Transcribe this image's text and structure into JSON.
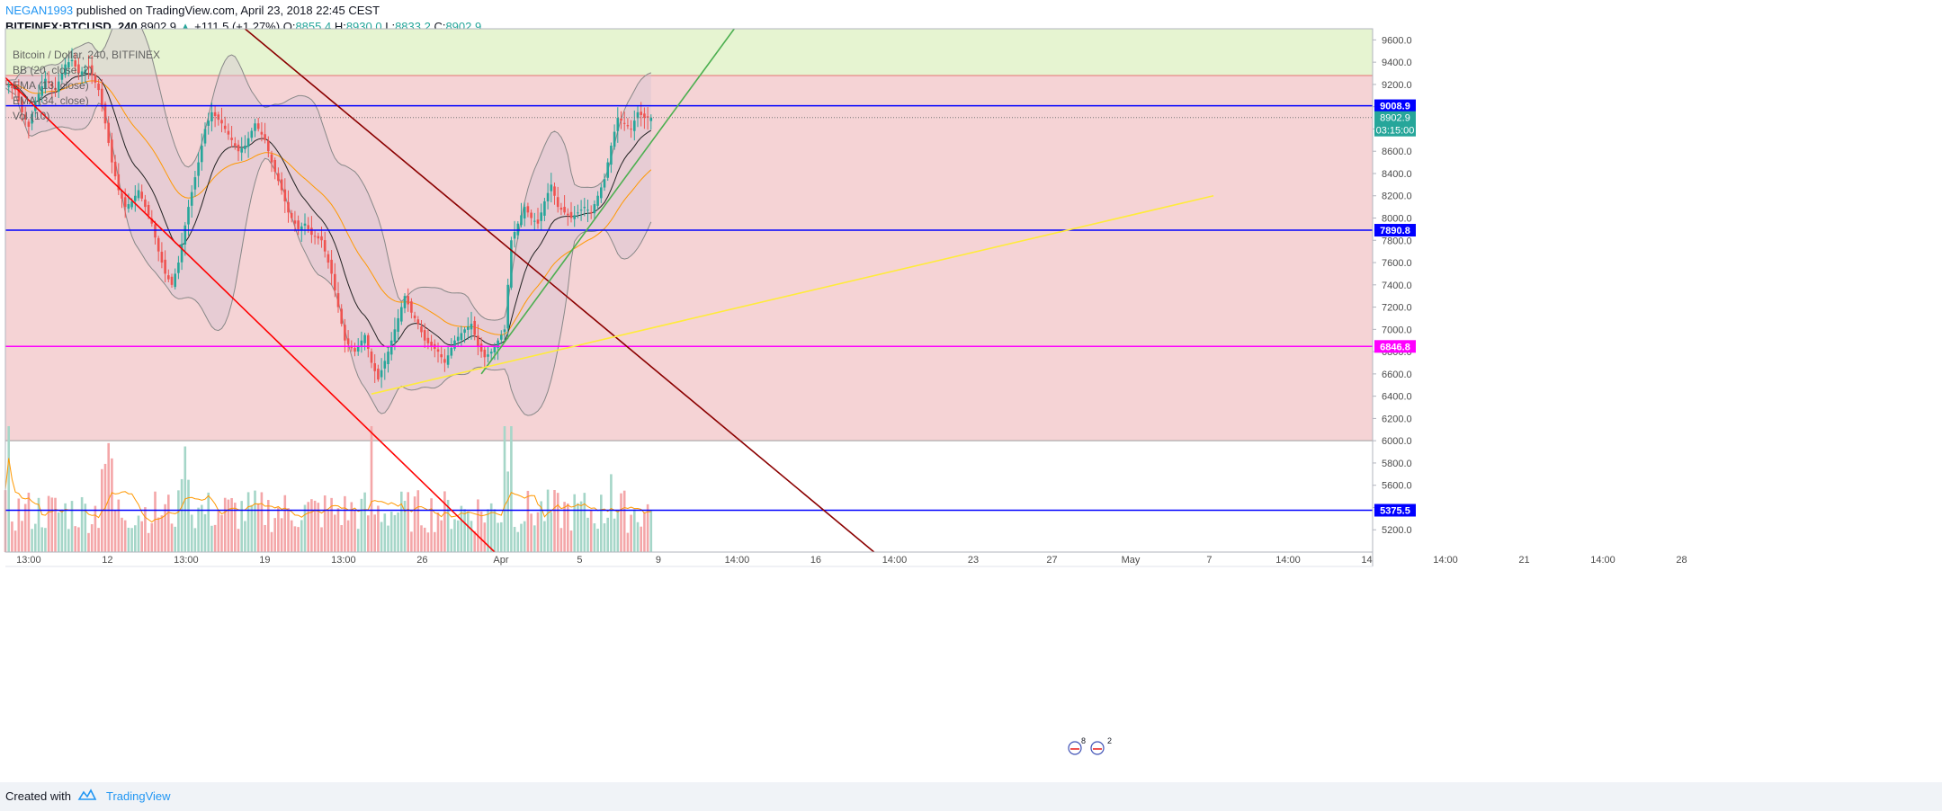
{
  "header": {
    "author": "NEGAN1993",
    "published_text": "published on TradingView.com, April 23, 2018 22:45 CEST",
    "symbol": "BITFINEX:BTCUSD, 240",
    "last": "8902.9",
    "change": "+111.5 (+1.27%)",
    "o_label": "O:",
    "o_value": "8855.4",
    "h_label": "H:",
    "h_value": "8930.0",
    "l_label": "L:",
    "l_value": "8833.2",
    "c_label": "C:",
    "c_value": "8902.9"
  },
  "legend": [
    "Bitcoin / Dollar, 240, BITFINEX",
    "BB (20, close, 2)",
    "EMA (13, close)",
    "EMA (34, close)",
    "Vol (10)"
  ],
  "footer": {
    "created_with": "Created with",
    "brand": "TradingView"
  },
  "colors": {
    "up": "#26a69a",
    "down": "#ef5350",
    "zone_green": "#e6f4d1",
    "zone_red": "#f5d3d5",
    "hline_blue": "#0000ff",
    "hline_magenta": "#ff00ff",
    "trend_red": "#ff0000",
    "trend_darkred": "#8b0000",
    "trend_green": "#4caf50",
    "trend_yellow": "#ffeb3b",
    "bb_fill": "#d8c4d3",
    "bb_line": "#888888",
    "ema_fast": "#222222",
    "ema_slow": "#ff9800"
  },
  "chart_data": {
    "type": "candlestick",
    "symbol": "BITFINEX:BTCUSD",
    "interval": "240",
    "x_tick_labels": [
      "13:00",
      "12",
      "13:00",
      "19",
      "13:00",
      "26",
      "Apr",
      "5",
      "9",
      "14:00",
      "16",
      "14:00",
      "23",
      "27",
      "May",
      "7",
      "14:00",
      "14",
      "14:00",
      "21",
      "14:00",
      "28"
    ],
    "y_tick_labels": [
      "9600.0",
      "9400.0",
      "9200.0",
      "9000.0",
      "8800.0",
      "8600.0",
      "8400.0",
      "8200.0",
      "8000.0",
      "7800.0",
      "7600.0",
      "7400.0",
      "7200.0",
      "7000.0",
      "6800.0",
      "6600.0",
      "6400.0",
      "6200.0",
      "6000.0",
      "5800.0",
      "5600.0",
      "5400.0",
      "5200.0"
    ],
    "ylim": [
      5000,
      9700
    ],
    "horizontal_levels": [
      {
        "value": 9008.9,
        "label": "9008.9",
        "color": "#0000ff"
      },
      {
        "value": 7890.8,
        "label": "7890.8",
        "color": "#0000ff"
      },
      {
        "value": 6846.8,
        "label": "6846.8",
        "color": "#ff00ff"
      },
      {
        "value": 5375.5,
        "label": "5375.5",
        "color": "#0000ff"
      }
    ],
    "last_price": {
      "value": 8902.9,
      "label": "8902.9",
      "countdown": "03:15:00"
    },
    "zones": [
      {
        "from": 9280,
        "to": 9700,
        "color": "#e6f4d1"
      },
      {
        "from": 6000,
        "to": 9280,
        "color": "#f5d3d5"
      }
    ],
    "close_path": [
      [
        0,
        9200
      ],
      [
        3,
        9150
      ],
      [
        5,
        8950
      ],
      [
        7,
        8820
      ],
      [
        9,
        9050
      ],
      [
        12,
        9250
      ],
      [
        15,
        9150
      ],
      [
        18,
        9380
      ],
      [
        20,
        9420
      ],
      [
        22,
        9300
      ],
      [
        25,
        9350
      ],
      [
        28,
        9150
      ],
      [
        30,
        8850
      ],
      [
        32,
        8500
      ],
      [
        34,
        8250
      ],
      [
        36,
        8100
      ],
      [
        38,
        8150
      ],
      [
        40,
        8250
      ],
      [
        42,
        8100
      ],
      [
        44,
        7950
      ],
      [
        46,
        7700
      ],
      [
        48,
        7500
      ],
      [
        50,
        7400
      ],
      [
        52,
        7600
      ],
      [
        55,
        8100
      ],
      [
        58,
        8500
      ],
      [
        60,
        8800
      ],
      [
        62,
        8950
      ],
      [
        65,
        8850
      ],
      [
        68,
        8700
      ],
      [
        70,
        8600
      ],
      [
        72,
        8650
      ],
      [
        75,
        8850
      ],
      [
        78,
        8700
      ],
      [
        80,
        8500
      ],
      [
        83,
        8250
      ],
      [
        85,
        8050
      ],
      [
        88,
        7900
      ],
      [
        90,
        7950
      ],
      [
        92,
        7850
      ],
      [
        95,
        7800
      ],
      [
        98,
        7500
      ],
      [
        100,
        7200
      ],
      [
        102,
        6900
      ],
      [
        105,
        6800
      ],
      [
        108,
        6950
      ],
      [
        110,
        6700
      ],
      [
        112,
        6550
      ],
      [
        115,
        6800
      ],
      [
        118,
        7100
      ],
      [
        120,
        7300
      ],
      [
        122,
        7150
      ],
      [
        124,
        7050
      ],
      [
        126,
        6900
      ],
      [
        128,
        6850
      ],
      [
        130,
        6800
      ],
      [
        132,
        6700
      ],
      [
        135,
        6900
      ],
      [
        138,
        7000
      ],
      [
        140,
        7050
      ],
      [
        142,
        6850
      ],
      [
        144,
        6750
      ],
      [
        146,
        6800
      ],
      [
        148,
        6900
      ],
      [
        150,
        7000
      ],
      [
        152,
        7800
      ],
      [
        154,
        7950
      ],
      [
        156,
        8100
      ],
      [
        158,
        8000
      ],
      [
        160,
        7950
      ],
      [
        162,
        8150
      ],
      [
        164,
        8300
      ],
      [
        166,
        8100
      ],
      [
        168,
        8050
      ],
      [
        170,
        8000
      ],
      [
        172,
        8050
      ],
      [
        174,
        8100
      ],
      [
        176,
        8050
      ],
      [
        178,
        8200
      ],
      [
        180,
        8350
      ],
      [
        182,
        8650
      ],
      [
        184,
        8900
      ],
      [
        186,
        8850
      ],
      [
        188,
        8800
      ],
      [
        190,
        8950
      ],
      [
        192,
        8900
      ],
      [
        194,
        8902.9
      ]
    ],
    "trendlines": [
      {
        "color": "#ff0000",
        "from": {
          "bar": -1,
          "price": 9290
        },
        "to": {
          "bar": 147,
          "price": 5000
        }
      },
      {
        "color": "#8b0000",
        "from": {
          "bar": 72,
          "price": 9700
        },
        "to": {
          "bar": 261,
          "price": 5000
        }
      },
      {
        "color": "#4caf50",
        "from": {
          "bar": 143,
          "price": 6600
        },
        "to": {
          "bar": 219,
          "price": 9700
        }
      },
      {
        "color": "#ffeb3b",
        "from": {
          "bar": 110,
          "price": 6420
        },
        "to": {
          "bar": 363,
          "price": 8200
        }
      }
    ]
  }
}
